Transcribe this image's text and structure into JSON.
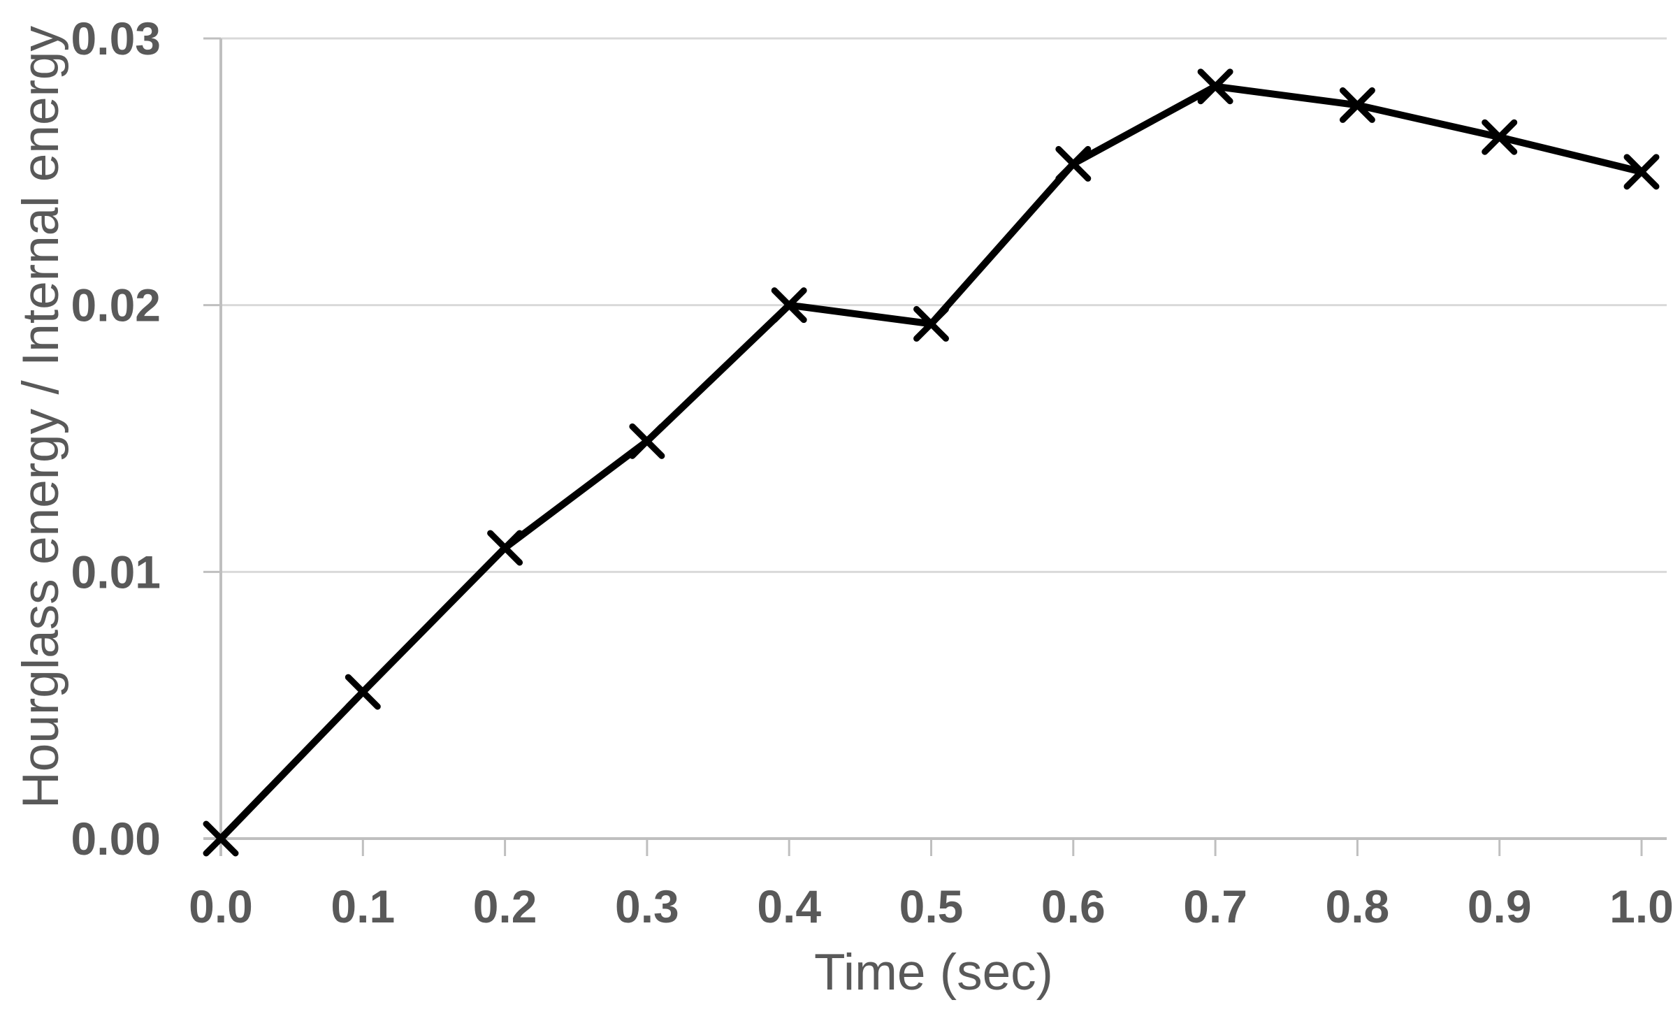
{
  "chart_data": {
    "type": "line",
    "title": "",
    "xlabel": "Time (sec)",
    "ylabel": "Hourglass energy / Internal energy",
    "series": [
      {
        "name": "Hourglass energy / Internal energy",
        "x": [
          0.0,
          0.1,
          0.2,
          0.3,
          0.4,
          0.5,
          0.6,
          0.7,
          0.8,
          0.9,
          1.0
        ],
        "values": [
          0.0,
          0.0055,
          0.0109,
          0.0149,
          0.02,
          0.0193,
          0.0253,
          0.0282,
          0.0275,
          0.0263,
          0.025
        ],
        "marker": "x",
        "color": "#000000"
      }
    ],
    "xlim": [
      0.0,
      1.0
    ],
    "ylim": [
      0.0,
      0.03
    ],
    "x_tick_labels": [
      "0.0",
      "0.1",
      "0.2",
      "0.3",
      "0.4",
      "0.5",
      "0.6",
      "0.7",
      "0.8",
      "0.9",
      "1.0"
    ],
    "x_tick_values": [
      0.0,
      0.1,
      0.2,
      0.3,
      0.4,
      0.5,
      0.6,
      0.7,
      0.8,
      0.9,
      1.0
    ],
    "y_tick_labels": [
      "0.00",
      "0.01",
      "0.02",
      "0.03"
    ],
    "y_tick_values": [
      0.0,
      0.01,
      0.02,
      0.03
    ],
    "grid": "horizontal",
    "legend": "none",
    "colors": {
      "line": "#000000",
      "marker": "#000000",
      "axis": "#bfbfbf",
      "gridline": "#d9d9d9",
      "labels": "#595959"
    }
  }
}
